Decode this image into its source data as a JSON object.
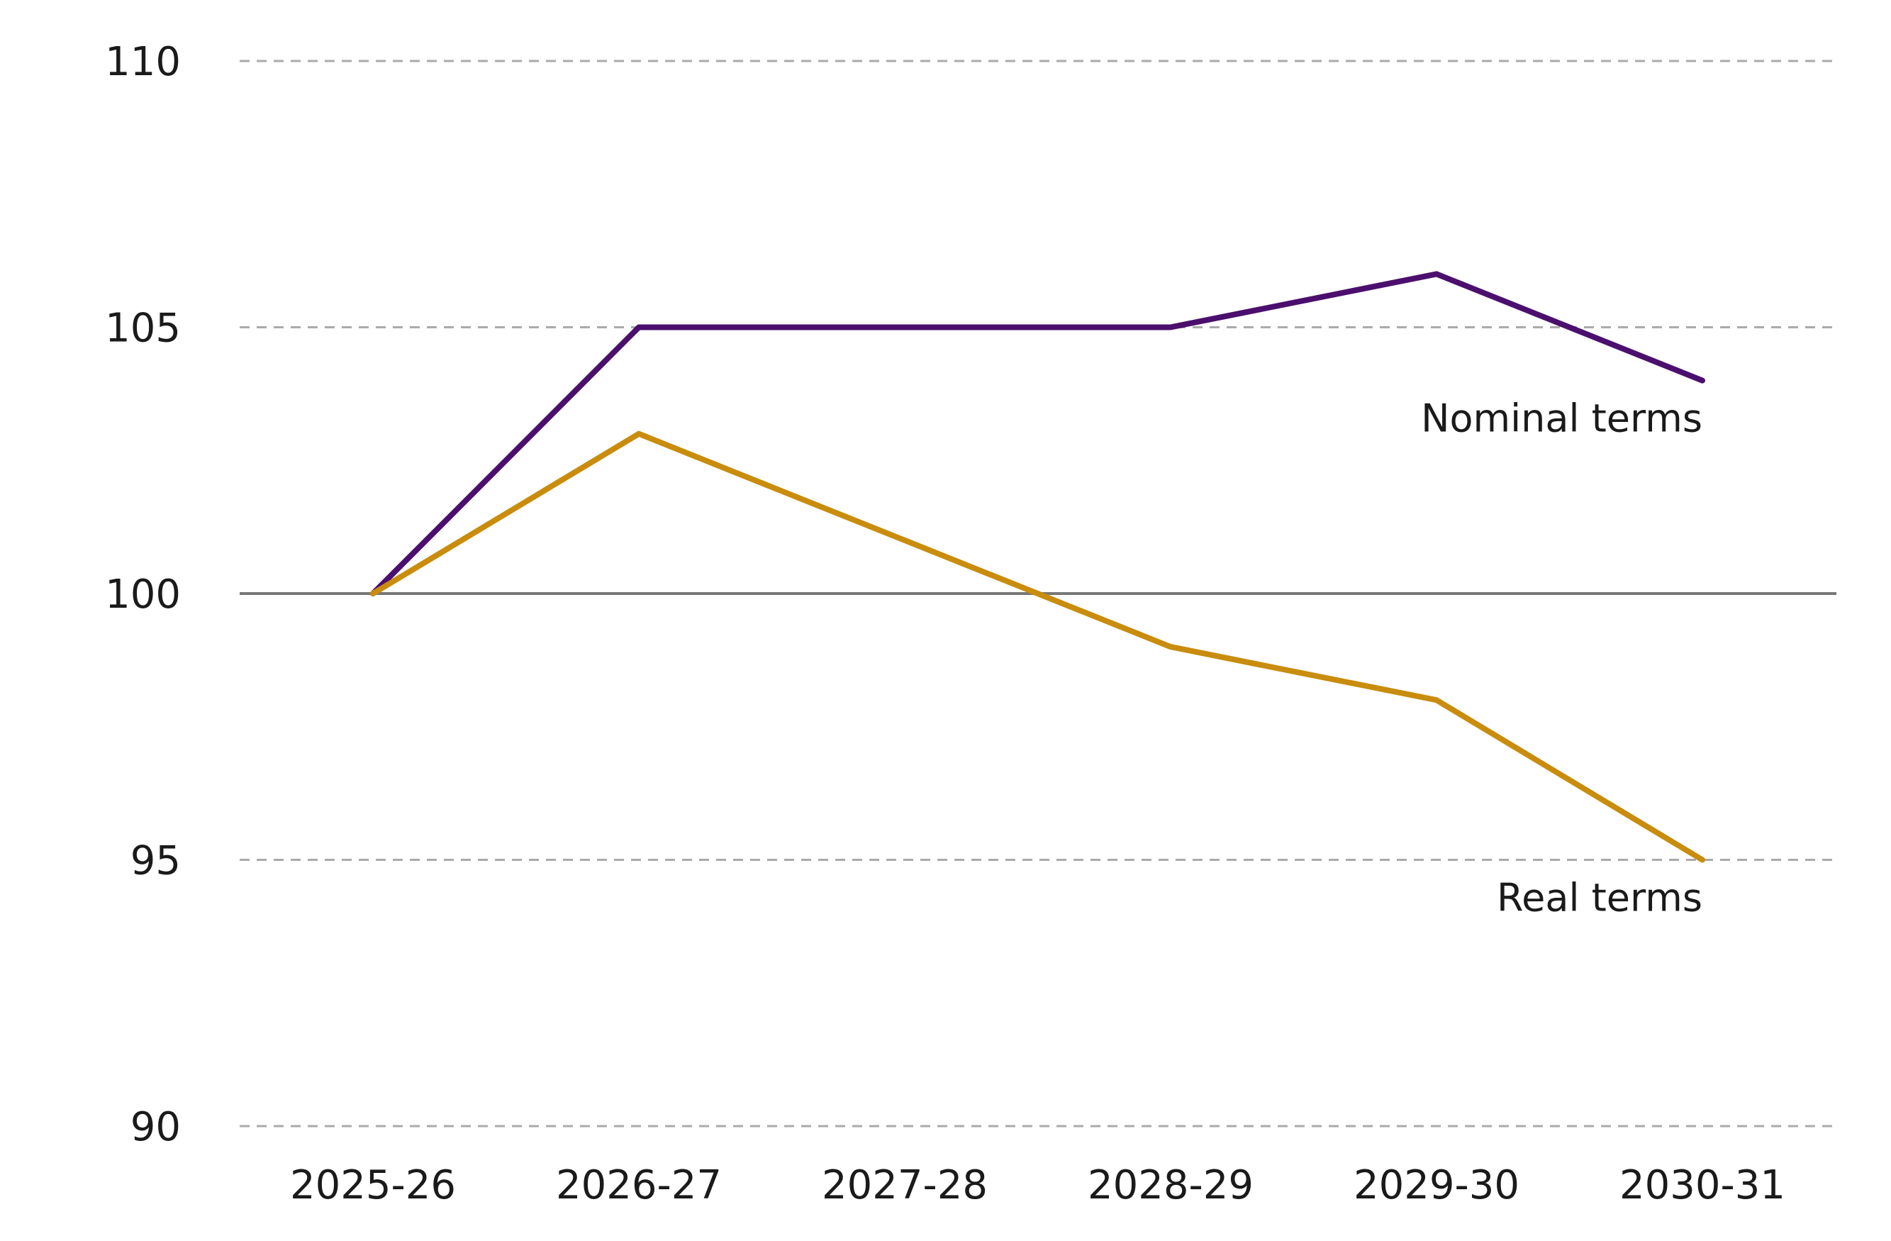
{
  "chart_data": {
    "type": "line",
    "title": "",
    "xlabel": "",
    "ylabel": "",
    "categories": [
      "2025-26",
      "2026-27",
      "2027-28",
      "2028-29",
      "2029-30",
      "2030-31"
    ],
    "series": [
      {
        "name": "Nominal terms",
        "color": "#4b0f6e",
        "values": [
          100,
          105,
          105,
          105,
          106,
          104
        ]
      },
      {
        "name": "Real terms",
        "color": "#c98c0c",
        "values": [
          100,
          103,
          101,
          99,
          98,
          95
        ]
      }
    ],
    "ylim": [
      90,
      110
    ],
    "yticks": [
      "90",
      "95",
      "100",
      "105",
      "110"
    ],
    "reference_line": 100,
    "grid": "horizontal dashed",
    "legend": "inline labels at right"
  }
}
